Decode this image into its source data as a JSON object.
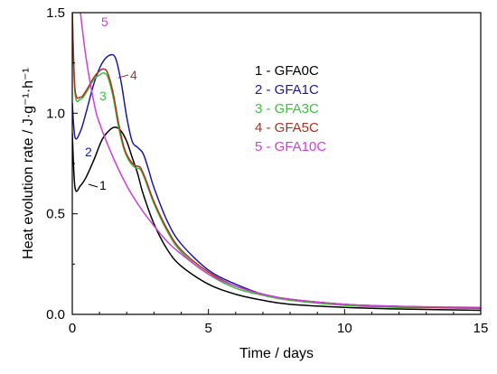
{
  "chart_data": {
    "type": "line",
    "title": "",
    "xlabel": "Time / days",
    "ylabel": "Heat evolution rate / J·g⁻¹·h⁻¹",
    "xlim": [
      0,
      15
    ],
    "ylim": [
      0,
      1.5
    ],
    "xticks": [
      0,
      5,
      10,
      15
    ],
    "xtick_labels": [
      "0",
      "5",
      "10",
      "15"
    ],
    "yticks": [
      0.0,
      0.5,
      1.0,
      1.5
    ],
    "ytick_labels": [
      "0.0",
      "0.5",
      "1.0",
      "1.5"
    ],
    "grid": false,
    "legend_position": "top-right",
    "series": [
      {
        "name": "1 -  GFA0C",
        "marker": "1",
        "color": "#000000",
        "x": [
          0,
          0.1,
          0.3,
          0.5,
          0.8,
          1.1,
          1.4,
          1.6,
          1.8,
          2.0,
          2.2,
          2.4,
          2.6,
          3.0,
          3.5,
          4.0,
          5.0,
          6.0,
          7.0,
          8.0,
          10.0,
          12.0,
          15.0
        ],
        "y": [
          0.9,
          0.63,
          0.64,
          0.68,
          0.77,
          0.87,
          0.92,
          0.93,
          0.91,
          0.86,
          0.78,
          0.7,
          0.6,
          0.45,
          0.32,
          0.24,
          0.15,
          0.1,
          0.07,
          0.05,
          0.035,
          0.027,
          0.02
        ]
      },
      {
        "name": "2 -  GFA1C",
        "marker": "2",
        "color": "#1a1aa0",
        "x": [
          0,
          0.1,
          0.3,
          0.5,
          0.8,
          1.1,
          1.4,
          1.6,
          1.8,
          2.0,
          2.2,
          2.4,
          2.6,
          2.8,
          3.0,
          3.5,
          4.0,
          5.0,
          6.0,
          7.0,
          8.0,
          10.0,
          12.0,
          15.0
        ],
        "y": [
          1.05,
          0.88,
          0.91,
          1.0,
          1.15,
          1.25,
          1.29,
          1.27,
          1.15,
          0.98,
          0.86,
          0.83,
          0.8,
          0.72,
          0.63,
          0.46,
          0.35,
          0.22,
          0.15,
          0.1,
          0.075,
          0.05,
          0.04,
          0.03
        ]
      },
      {
        "name": "3 -  GFA3C",
        "marker": "3",
        "color": "#3ac23a",
        "x": [
          0,
          0.1,
          0.3,
          0.5,
          0.8,
          1.0,
          1.15,
          1.3,
          1.5,
          1.7,
          1.9,
          2.1,
          2.3,
          2.5,
          2.7,
          3.0,
          3.5,
          4.0,
          5.0,
          6.0,
          7.0,
          8.0,
          10.0,
          12.0,
          15.0
        ],
        "y": [
          1.5,
          1.1,
          1.07,
          1.1,
          1.17,
          1.19,
          1.2,
          1.18,
          1.08,
          0.93,
          0.82,
          0.76,
          0.73,
          0.72,
          0.66,
          0.55,
          0.41,
          0.31,
          0.2,
          0.13,
          0.095,
          0.07,
          0.045,
          0.035,
          0.03
        ]
      },
      {
        "name": "4 -  GFA5C",
        "marker": "4",
        "color": "#b03020",
        "x": [
          0,
          0.1,
          0.3,
          0.5,
          0.8,
          1.0,
          1.15,
          1.3,
          1.5,
          1.7,
          1.9,
          2.1,
          2.3,
          2.5,
          2.7,
          3.0,
          3.5,
          4.0,
          5.0,
          6.0,
          7.0,
          8.0,
          10.0,
          12.0,
          15.0
        ],
        "y": [
          1.5,
          1.12,
          1.08,
          1.11,
          1.18,
          1.21,
          1.22,
          1.2,
          1.1,
          0.95,
          0.83,
          0.77,
          0.74,
          0.73,
          0.67,
          0.56,
          0.42,
          0.32,
          0.21,
          0.14,
          0.1,
          0.075,
          0.05,
          0.038,
          0.032
        ]
      },
      {
        "name": "5 -  GFA10C",
        "marker": "5",
        "color": "#cc3fd8",
        "x": [
          0.3,
          0.5,
          0.8,
          1.0,
          1.5,
          2.0,
          2.5,
          3.0,
          3.5,
          4.0,
          5.0,
          6.0,
          7.0,
          8.0,
          10.0,
          12.0,
          15.0
        ],
        "y": [
          1.5,
          1.28,
          1.05,
          0.95,
          0.78,
          0.64,
          0.53,
          0.44,
          0.36,
          0.3,
          0.2,
          0.14,
          0.1,
          0.075,
          0.05,
          0.04,
          0.035
        ]
      }
    ]
  }
}
